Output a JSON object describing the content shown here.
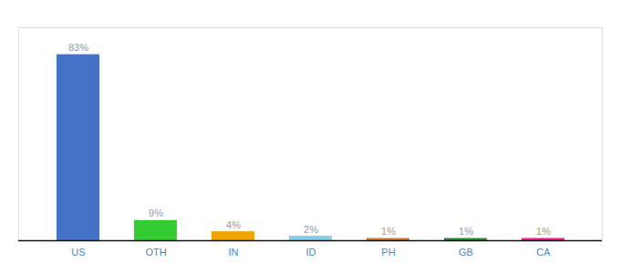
{
  "chart_data": {
    "type": "bar",
    "categories": [
      "US",
      "OTH",
      "IN",
      "ID",
      "PH",
      "GB",
      "CA"
    ],
    "values": [
      83,
      9,
      4,
      2,
      1,
      1,
      1
    ],
    "value_labels": [
      "83%",
      "9%",
      "4%",
      "2%",
      "1%",
      "1%",
      "1%"
    ],
    "colors": [
      "#4472c4",
      "#33cc33",
      "#f0a500",
      "#87ceeb",
      "#c87941",
      "#2d8a2d",
      "#e91e8c"
    ],
    "ylim": [
      0,
      95
    ],
    "data_labels": true,
    "tick_labels": "x",
    "grid": false
  }
}
